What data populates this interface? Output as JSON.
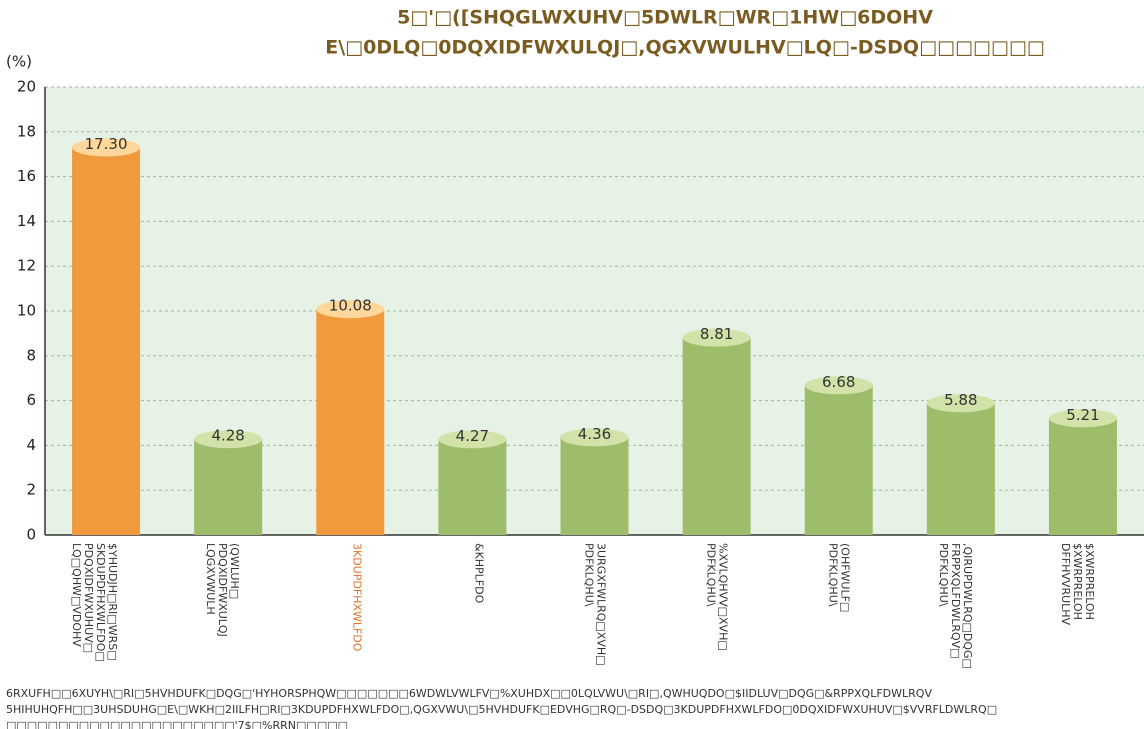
{
  "chart_data": {
    "type": "bar",
    "title": [
      "5□'□([SHQGLWXUHV□5DWLR□WR□1HW□6DOHV",
      "E\\□0DLQ□0DQXIDFWXULQJ□,QGXVWULHV□LQ□-DSDQ□□□□□□□"
    ],
    "ylabel": "(%)",
    "categories": [
      [
        "$YHUDJH□RI□WRS□",
        "SKDUPDFHXWLFDO□",
        "PDQXIDFWXUHUV□",
        "LQ□QHW□VDOHV"
      ],
      [
        "(QWLUH□",
        "PDQXIDFWXULQJ",
        "LQGXVWULH"
      ],
      [
        "3KDUPDFHXWLFDO"
      ],
      [
        "&KHPLFDO"
      ],
      [
        "3URGXFWLRQ□XVH□",
        "PDFKLQHU\\"
      ],
      [
        "%XVLQHVV□XVH□",
        "PDFKLQHU\\"
      ],
      [
        "(OHFWULF□",
        "PDFKLQHU\\"
      ],
      [
        ",QIRUPDWLRQ□DQG□",
        "FRPPXQLFDWLRQV□",
        "PDFKLQHU\\"
      ],
      [
        "$XWRPRELOH",
        "$XWRPRELOH",
        "DFFHVVRULHV"
      ]
    ],
    "values": [
      17.3,
      4.28,
      10.08,
      4.27,
      4.36,
      8.81,
      6.68,
      5.88,
      5.21
    ],
    "value_labels": [
      "17.30",
      "4.28",
      "10.08",
      "4.27",
      "4.36",
      "8.81",
      "6.68",
      "5.88",
      "5.21"
    ],
    "colors": [
      "#f09a3e",
      "#9dbd6b",
      "#f09a3e",
      "#9dbd6b",
      "#9dbd6b",
      "#9dbd6b",
      "#9dbd6b",
      "#9dbd6b",
      "#9dbd6b"
    ],
    "ylim": [
      0,
      20
    ],
    "yticks": [
      0,
      2,
      4,
      6,
      8,
      10,
      12,
      14,
      16,
      18,
      20
    ],
    "grid": true,
    "notes": [
      "6RXUFH□□6XUYH\\□RI□5HVHDUFK□DQG□'HYHORSPHQW□□□□□□□6WDWLVWLFV□%XUHDX□□0LQLVWU\\□RI□,QWHUQDO□$IIDLUV□DQG□&RPPXQLFDWLRQV",
      "5HIHUHQFH□□3UHSDUHG□E\\□WKH□2IILFH□RI□3KDUPDFHXWLFDO□,QGXVWU\\□5HVHDUFK□EDVHG□RQ□-DSDQ□3KDUPDFHXWLFDO□0DQXIDFWXUHUV□$VVRFLDWLRQ□",
      "□□□□□□□□□□□□□□□□□□□□□□'7$□%RRN□□□□□"
    ]
  }
}
